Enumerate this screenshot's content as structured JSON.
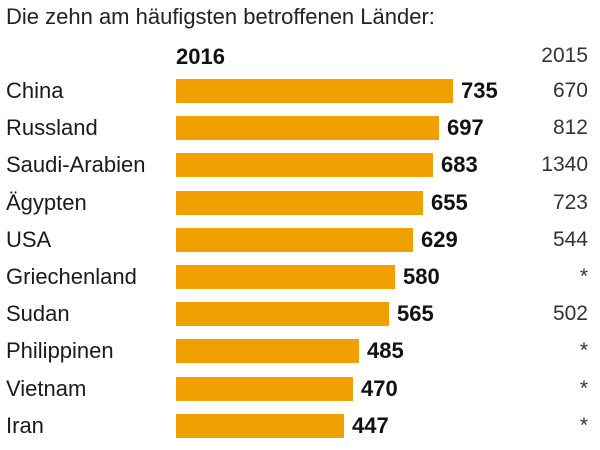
{
  "subtitle": "Die zehn am häufigsten betroffenen Länder:",
  "chart_data": {
    "type": "bar",
    "orientation": "horizontal",
    "categories": [
      "China",
      "Russland",
      "Saudi-Arabien",
      "Ägypten",
      "USA",
      "Griechenland",
      "Sudan",
      "Philippinen",
      "Vietnam",
      "Iran"
    ],
    "series": [
      {
        "name": "2016",
        "values": [
          735,
          697,
          683,
          655,
          629,
          580,
          565,
          485,
          470,
          447
        ]
      },
      {
        "name": "2015",
        "values": [
          "670",
          "812",
          "1340",
          "723",
          "544",
          "*",
          "502",
          "*",
          "*",
          "*"
        ]
      }
    ],
    "bar_color": "#f0a000"
  }
}
